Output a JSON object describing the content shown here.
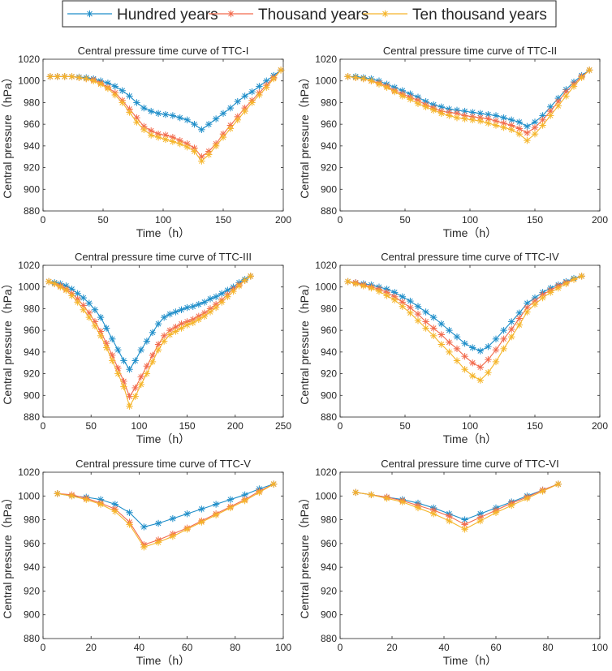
{
  "legend": [
    {
      "label": "Hundred years",
      "color": "#1f8ec9"
    },
    {
      "label": "Thousand years",
      "color": "#f26b4d"
    },
    {
      "label": "Ten thousand years",
      "color": "#f5b52a"
    }
  ],
  "chart_data": [
    {
      "type": "line",
      "title": "Central pressure time curve of TTC-I",
      "xlabel": "Time（h）",
      "ylabel": "Central pressure（hPa）",
      "xlim": [
        0,
        200
      ],
      "ylim": [
        880,
        1020
      ],
      "xticks": [
        0,
        50,
        100,
        150,
        200
      ],
      "yticks": [
        880,
        900,
        920,
        940,
        960,
        980,
        1000,
        1020
      ],
      "x": [
        6,
        12,
        18,
        24,
        30,
        36,
        42,
        48,
        54,
        60,
        66,
        72,
        78,
        84,
        90,
        96,
        102,
        108,
        114,
        120,
        126,
        132,
        138,
        144,
        150,
        156,
        162,
        168,
        174,
        180,
        186,
        192,
        198
      ],
      "series": [
        {
          "name": "Hundred years",
          "values": [
            1004,
            1004,
            1004,
            1004,
            1003.5,
            1003,
            1002,
            1000,
            998,
            995,
            991,
            986,
            980,
            975,
            972,
            970,
            969,
            968,
            966,
            964,
            960,
            955,
            960,
            965,
            970,
            975,
            981,
            986,
            990,
            995,
            1000,
            1005,
            1010
          ]
        },
        {
          "name": "Thousand years",
          "values": [
            1004,
            1004,
            1004,
            1004,
            1003,
            1002,
            1001,
            998,
            994,
            989,
            982,
            974,
            966,
            958,
            954,
            951,
            950,
            948,
            945,
            942,
            938,
            930,
            935,
            942,
            951,
            959,
            967,
            975,
            982,
            989,
            996,
            1003,
            1010
          ]
        },
        {
          "name": "Ten thousand years",
          "values": [
            1004,
            1004,
            1004,
            1004,
            1003,
            1002,
            1000,
            997,
            993,
            987,
            980,
            971,
            962,
            955,
            950,
            948,
            946,
            944,
            942,
            939,
            935,
            926,
            932,
            940,
            948,
            956,
            964,
            972,
            980,
            987,
            994,
            1002,
            1010
          ]
        }
      ]
    },
    {
      "type": "line",
      "title": "Central pressure time curve of TTC-II",
      "xlabel": "Time（h）",
      "ylabel": "Central pressure（hPa）",
      "xlim": [
        0,
        200
      ],
      "ylim": [
        880,
        1020
      ],
      "xticks": [
        0,
        50,
        100,
        150,
        200
      ],
      "yticks": [
        880,
        900,
        920,
        940,
        960,
        980,
        1000,
        1020
      ],
      "x": [
        6,
        12,
        18,
        24,
        30,
        36,
        42,
        48,
        54,
        60,
        66,
        72,
        78,
        84,
        90,
        96,
        102,
        108,
        114,
        120,
        126,
        132,
        138,
        144,
        150,
        156,
        162,
        168,
        174,
        180,
        186,
        192
      ],
      "series": [
        {
          "name": "Hundred years",
          "values": [
            1004,
            1004,
            1003,
            1002,
            1000,
            997,
            994,
            991,
            988,
            985,
            981,
            978,
            976,
            974,
            973,
            972,
            971,
            970,
            969,
            968,
            966,
            964,
            962,
            958,
            962,
            968,
            976,
            984,
            992,
            999,
            1005,
            1010
          ]
        },
        {
          "name": "Thousand years",
          "values": [
            1004,
            1003,
            1002,
            1000,
            998,
            995,
            991,
            988,
            985,
            982,
            978,
            975,
            972,
            971,
            970,
            968,
            967,
            966,
            965,
            963,
            961,
            959,
            956,
            952,
            957,
            964,
            972,
            981,
            990,
            997,
            1004,
            1010
          ]
        },
        {
          "name": "Ten thousand years",
          "values": [
            1004,
            1003,
            1002,
            1000,
            997,
            994,
            990,
            986,
            983,
            979,
            976,
            973,
            970,
            968,
            966,
            965,
            964,
            963,
            961,
            959,
            957,
            955,
            951,
            945,
            951,
            959,
            968,
            977,
            986,
            995,
            1003,
            1010
          ]
        }
      ]
    },
    {
      "type": "line",
      "title": "Central pressure time curve of TTC-III",
      "xlabel": "Time（h）",
      "ylabel": "Central pressure（hPa）",
      "xlim": [
        0,
        250
      ],
      "ylim": [
        880,
        1020
      ],
      "xticks": [
        0,
        50,
        100,
        150,
        200,
        250
      ],
      "yticks": [
        880,
        900,
        920,
        940,
        960,
        980,
        1000,
        1020
      ],
      "x": [
        6,
        12,
        18,
        24,
        30,
        36,
        42,
        48,
        54,
        60,
        66,
        72,
        78,
        84,
        90,
        96,
        102,
        108,
        114,
        120,
        126,
        132,
        138,
        144,
        150,
        156,
        162,
        168,
        174,
        180,
        186,
        192,
        198,
        204,
        210,
        216
      ],
      "series": [
        {
          "name": "Hundred years",
          "values": [
            1005,
            1004,
            1003,
            1001,
            998,
            994,
            990,
            985,
            979,
            972,
            962,
            952,
            942,
            932,
            924,
            932,
            942,
            950,
            958,
            966,
            972,
            975,
            977,
            979,
            981,
            982,
            984,
            986,
            989,
            991,
            994,
            997,
            1000,
            1004,
            1007,
            1010
          ]
        },
        {
          "name": "Thousand years",
          "values": [
            1005,
            1003,
            1001,
            998,
            994,
            989,
            983,
            976,
            968,
            959,
            948,
            937,
            925,
            913,
            899,
            907,
            917,
            927,
            937,
            947,
            955,
            960,
            963,
            966,
            968,
            970,
            973,
            976,
            980,
            984,
            988,
            993,
            998,
            1002,
            1006,
            1010
          ]
        },
        {
          "name": "Ten thousand years",
          "values": [
            1005,
            1003,
            1000,
            997,
            992,
            986,
            979,
            972,
            964,
            955,
            944,
            932,
            920,
            908,
            890,
            899,
            910,
            920,
            931,
            942,
            950,
            956,
            959,
            962,
            965,
            967,
            970,
            973,
            977,
            981,
            986,
            991,
            996,
            1001,
            1006,
            1010
          ]
        }
      ]
    },
    {
      "type": "line",
      "title": "Central pressure time curve of TTC-IV",
      "xlabel": "Time（h）",
      "ylabel": "Central pressure（hPa）",
      "xlim": [
        0,
        200
      ],
      "ylim": [
        880,
        1020
      ],
      "xticks": [
        0,
        50,
        100,
        150,
        200
      ],
      "yticks": [
        880,
        900,
        920,
        940,
        960,
        980,
        1000,
        1020
      ],
      "x": [
        6,
        12,
        18,
        24,
        30,
        36,
        42,
        48,
        54,
        60,
        66,
        72,
        78,
        84,
        90,
        96,
        102,
        108,
        114,
        120,
        126,
        132,
        138,
        144,
        150,
        156,
        162,
        168,
        174,
        180,
        186
      ],
      "series": [
        {
          "name": "Hundred years",
          "values": [
            1005,
            1004,
            1003,
            1002,
            1000,
            998,
            995,
            991,
            987,
            982,
            977,
            972,
            966,
            960,
            954,
            948,
            944,
            941,
            945,
            952,
            960,
            968,
            976,
            985,
            990,
            995,
            999,
            1002,
            1005,
            1008,
            1010
          ]
        },
        {
          "name": "Thousand years",
          "values": [
            1005,
            1004,
            1002,
            1000,
            998,
            995,
            991,
            986,
            981,
            975,
            968,
            962,
            956,
            949,
            943,
            936,
            930,
            926,
            933,
            942,
            952,
            961,
            971,
            981,
            987,
            993,
            997,
            1001,
            1004,
            1007,
            1010
          ]
        },
        {
          "name": "Ten thousand years",
          "values": [
            1005,
            1003,
            1001,
            999,
            996,
            992,
            988,
            982,
            976,
            969,
            962,
            955,
            947,
            940,
            932,
            924,
            918,
            914,
            921,
            931,
            943,
            954,
            965,
            977,
            984,
            990,
            995,
            999,
            1003,
            1007,
            1010
          ]
        }
      ]
    },
    {
      "type": "line",
      "title": "Central pressure time curve of TTC-V",
      "xlabel": "Time（h）",
      "ylabel": "Central pressure（hPa）",
      "xlim": [
        0,
        100
      ],
      "ylim": [
        880,
        1020
      ],
      "xticks": [
        0,
        20,
        40,
        60,
        80,
        100
      ],
      "yticks": [
        880,
        900,
        920,
        940,
        960,
        980,
        1000,
        1020
      ],
      "x": [
        6,
        12,
        18,
        24,
        30,
        36,
        42,
        48,
        54,
        60,
        66,
        72,
        78,
        84,
        90,
        96
      ],
      "series": [
        {
          "name": "Hundred years",
          "values": [
            1002,
            1000,
            999,
            997,
            993,
            986,
            974,
            977,
            981,
            985,
            989,
            993,
            997,
            1001,
            1006,
            1010
          ]
        },
        {
          "name": "Thousand years",
          "values": [
            1002,
            1001,
            998,
            994,
            989,
            978,
            959,
            963,
            968,
            973,
            979,
            985,
            991,
            997,
            1004,
            1010
          ]
        },
        {
          "name": "Ten thousand years",
          "values": [
            1002,
            1000,
            997,
            993,
            987,
            976,
            957,
            961,
            966,
            972,
            978,
            984,
            990,
            996,
            1003,
            1010
          ]
        }
      ]
    },
    {
      "type": "line",
      "title": "Central pressure time curve of TTC-VI",
      "xlabel": "Time（h）",
      "ylabel": "Central pressure（hPa）",
      "xlim": [
        0,
        100
      ],
      "ylim": [
        880,
        1020
      ],
      "xticks": [
        0,
        20,
        40,
        60,
        80,
        100
      ],
      "yticks": [
        880,
        900,
        920,
        940,
        960,
        980,
        1000,
        1020
      ],
      "x": [
        6,
        12,
        18,
        24,
        30,
        36,
        42,
        48,
        54,
        60,
        66,
        72,
        78,
        84
      ],
      "series": [
        {
          "name": "Hundred years",
          "values": [
            1003,
            1001,
            999,
            997,
            994,
            990,
            985,
            980,
            985,
            990,
            995,
            1000,
            1005,
            1010
          ]
        },
        {
          "name": "Thousand years",
          "values": [
            1003,
            1001,
            999,
            996,
            992,
            988,
            983,
            976,
            982,
            988,
            994,
            999,
            1005,
            1010
          ]
        },
        {
          "name": "Ten thousand years",
          "values": [
            1003,
            1001,
            998,
            995,
            990,
            985,
            979,
            972,
            979,
            986,
            992,
            998,
            1004,
            1010
          ]
        }
      ]
    }
  ]
}
